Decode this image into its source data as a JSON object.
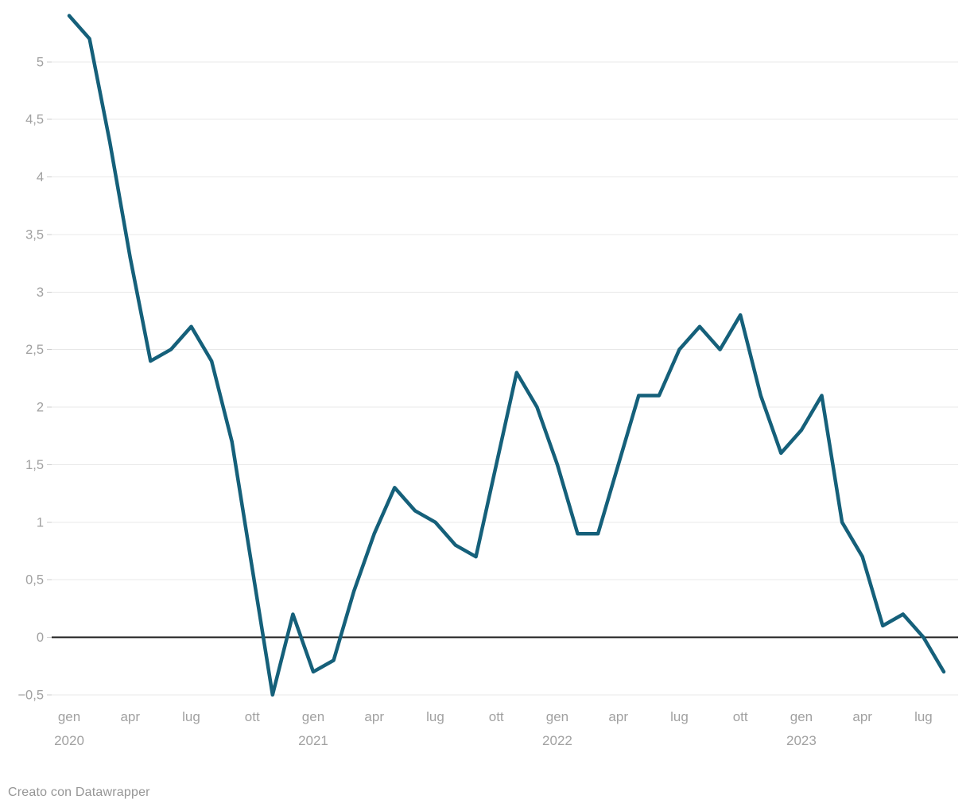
{
  "chart_data": {
    "type": "line",
    "title": "",
    "xlabel": "",
    "ylabel": "",
    "legend": "none",
    "grid": "horizontal",
    "x": [
      "gen 2020",
      "feb 2020",
      "mar 2020",
      "apr 2020",
      "mag 2020",
      "giu 2020",
      "lug 2020",
      "ago 2020",
      "set 2020",
      "ott 2020",
      "nov 2020",
      "dic 2020",
      "gen 2021",
      "feb 2021",
      "mar 2021",
      "apr 2021",
      "mag 2021",
      "giu 2021",
      "lug 2021",
      "ago 2021",
      "set 2021",
      "ott 2021",
      "nov 2021",
      "dic 2021",
      "gen 2022",
      "feb 2022",
      "mar 2022",
      "apr 2022",
      "mag 2022",
      "giu 2022",
      "lug 2022",
      "ago 2022",
      "set 2022",
      "ott 2022",
      "nov 2022",
      "dic 2022",
      "gen 2023",
      "feb 2023",
      "mar 2023",
      "apr 2023",
      "mag 2023",
      "giu 2023",
      "lug 2023",
      "ago 2023"
    ],
    "values": [
      5.4,
      5.2,
      4.3,
      3.3,
      2.4,
      2.5,
      2.7,
      2.4,
      1.7,
      0.6,
      -0.5,
      0.2,
      -0.3,
      -0.2,
      0.4,
      0.9,
      1.3,
      1.1,
      1.0,
      0.8,
      0.7,
      1.5,
      2.3,
      2.0,
      1.5,
      0.9,
      0.9,
      1.5,
      2.1,
      2.1,
      2.5,
      2.7,
      2.5,
      2.8,
      2.1,
      1.6,
      1.8,
      2.1,
      1.0,
      0.7,
      0.1,
      0.2,
      0.0,
      -0.3
    ],
    "ylim": [
      -0.5,
      5.5
    ],
    "y_ticks": [
      -0.5,
      0,
      0.5,
      1,
      1.5,
      2,
      2.5,
      3,
      3.5,
      4,
      4.5,
      5
    ],
    "y_tick_labels": [
      "−0,5",
      "0",
      "0,5",
      "1",
      "1,5",
      "2",
      "2,5",
      "3",
      "3,5",
      "4",
      "4,5",
      "5"
    ],
    "x_ticks": [
      {
        "m": 0,
        "label": "gen",
        "year": "2020"
      },
      {
        "m": 3,
        "label": "apr",
        "year": ""
      },
      {
        "m": 6,
        "label": "lug",
        "year": ""
      },
      {
        "m": 9,
        "label": "ott",
        "year": ""
      },
      {
        "m": 12,
        "label": "gen",
        "year": "2021"
      },
      {
        "m": 15,
        "label": "apr",
        "year": ""
      },
      {
        "m": 18,
        "label": "lug",
        "year": ""
      },
      {
        "m": 21,
        "label": "ott",
        "year": ""
      },
      {
        "m": 24,
        "label": "gen",
        "year": "2022"
      },
      {
        "m": 27,
        "label": "apr",
        "year": ""
      },
      {
        "m": 30,
        "label": "lug",
        "year": ""
      },
      {
        "m": 33,
        "label": "ott",
        "year": ""
      },
      {
        "m": 36,
        "label": "gen",
        "year": "2023"
      },
      {
        "m": 39,
        "label": "apr",
        "year": ""
      },
      {
        "m": 42,
        "label": "lug",
        "year": ""
      }
    ]
  },
  "footer": {
    "credit": "Creato con Datawrapper"
  },
  "colors": {
    "line": "#15607a",
    "grid": "#e8e8e8",
    "zero_line": "#1a1a1a",
    "tick_mark": "#cccccc",
    "axis_text": "#a1a1a1",
    "credit_text": "#969696",
    "background": "#ffffff"
  }
}
